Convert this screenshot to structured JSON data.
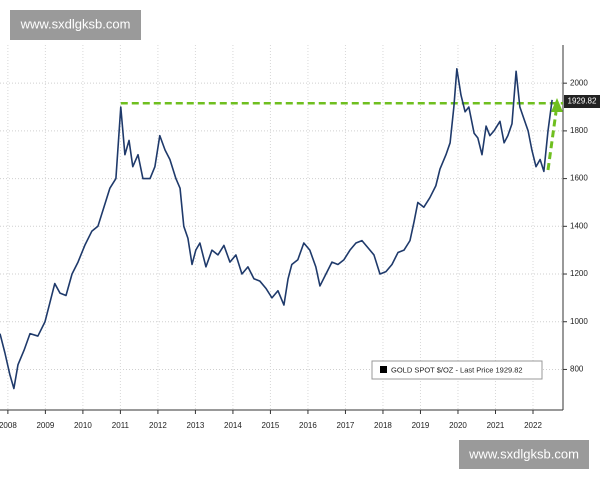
{
  "chart_data": {
    "type": "line",
    "x": [
      2007.79,
      2007.92,
      2008.05,
      2008.16,
      2008.27,
      2008.43,
      2008.59,
      2008.8,
      2008.99,
      2009.12,
      2009.25,
      2009.39,
      2009.55,
      2009.71,
      2009.87,
      2010.05,
      2010.24,
      2010.4,
      2010.56,
      2010.72,
      2010.88,
      2011.01,
      2011.12,
      2011.23,
      2011.33,
      2011.47,
      2011.6,
      2011.79,
      2011.92,
      2012.05,
      2012.19,
      2012.32,
      2012.48,
      2012.59,
      2012.69,
      2012.8,
      2012.91,
      2013.01,
      2013.12,
      2013.28,
      2013.44,
      2013.6,
      2013.76,
      2013.92,
      2014.08,
      2014.24,
      2014.4,
      2014.56,
      2014.72,
      2014.88,
      2015.04,
      2015.2,
      2015.36,
      2015.47,
      2015.57,
      2015.73,
      2015.89,
      2016.05,
      2016.21,
      2016.32,
      2016.48,
      2016.64,
      2016.8,
      2016.96,
      2017.12,
      2017.28,
      2017.44,
      2017.6,
      2017.76,
      2017.92,
      2018.08,
      2018.24,
      2018.4,
      2018.56,
      2018.72,
      2018.83,
      2018.93,
      2019.09,
      2019.25,
      2019.41,
      2019.52,
      2019.68,
      2019.79,
      2019.89,
      2019.97,
      2020.08,
      2020.19,
      2020.29,
      2020.43,
      2020.53,
      2020.64,
      2020.75,
      2020.85,
      2020.96,
      2021.12,
      2021.23,
      2021.33,
      2021.44,
      2021.55,
      2021.65,
      2021.76,
      2021.87,
      2021.97,
      2022.08,
      2022.19,
      2022.29,
      2022.4,
      2022.51
    ],
    "series": [
      {
        "name": "GOLD SPOT $/OZ - Last Price 1929.82",
        "color": "#1f3a6b",
        "values": [
          950,
          870,
          780,
          720,
          820,
          880,
          950,
          940,
          1000,
          1080,
          1160,
          1120,
          1110,
          1200,
          1250,
          1320,
          1380,
          1400,
          1480,
          1560,
          1600,
          1900,
          1700,
          1760,
          1650,
          1700,
          1600,
          1600,
          1650,
          1780,
          1720,
          1680,
          1600,
          1560,
          1400,
          1350,
          1240,
          1300,
          1330,
          1230,
          1300,
          1280,
          1320,
          1250,
          1280,
          1200,
          1230,
          1180,
          1170,
          1140,
          1100,
          1130,
          1070,
          1180,
          1240,
          1260,
          1330,
          1300,
          1230,
          1150,
          1200,
          1250,
          1240,
          1260,
          1300,
          1330,
          1340,
          1310,
          1280,
          1200,
          1210,
          1240,
          1290,
          1300,
          1340,
          1420,
          1500,
          1480,
          1520,
          1570,
          1640,
          1700,
          1750,
          1900,
          2060,
          1950,
          1880,
          1900,
          1790,
          1770,
          1700,
          1820,
          1780,
          1800,
          1840,
          1750,
          1780,
          1830,
          2050,
          1900,
          1850,
          1800,
          1720,
          1650,
          1680,
          1630,
          1800,
          1929.82
        ]
      }
    ],
    "last_value_label": "1929.82",
    "resistance_level": 1916,
    "xlim": [
      2007.79,
      2022.8
    ],
    "xticks": [
      2008,
      2009,
      2010,
      2011,
      2012,
      2013,
      2014,
      2015,
      2016,
      2017,
      2018,
      2019,
      2020,
      2021,
      2022
    ],
    "ylim": [
      630,
      2160
    ],
    "yticks": [
      800,
      1000,
      1200,
      1400,
      1600,
      1800,
      2000
    ],
    "grid": true
  },
  "watermarks": [
    "www.sxdlgksb.com",
    "www.sxdlgksb.com"
  ]
}
